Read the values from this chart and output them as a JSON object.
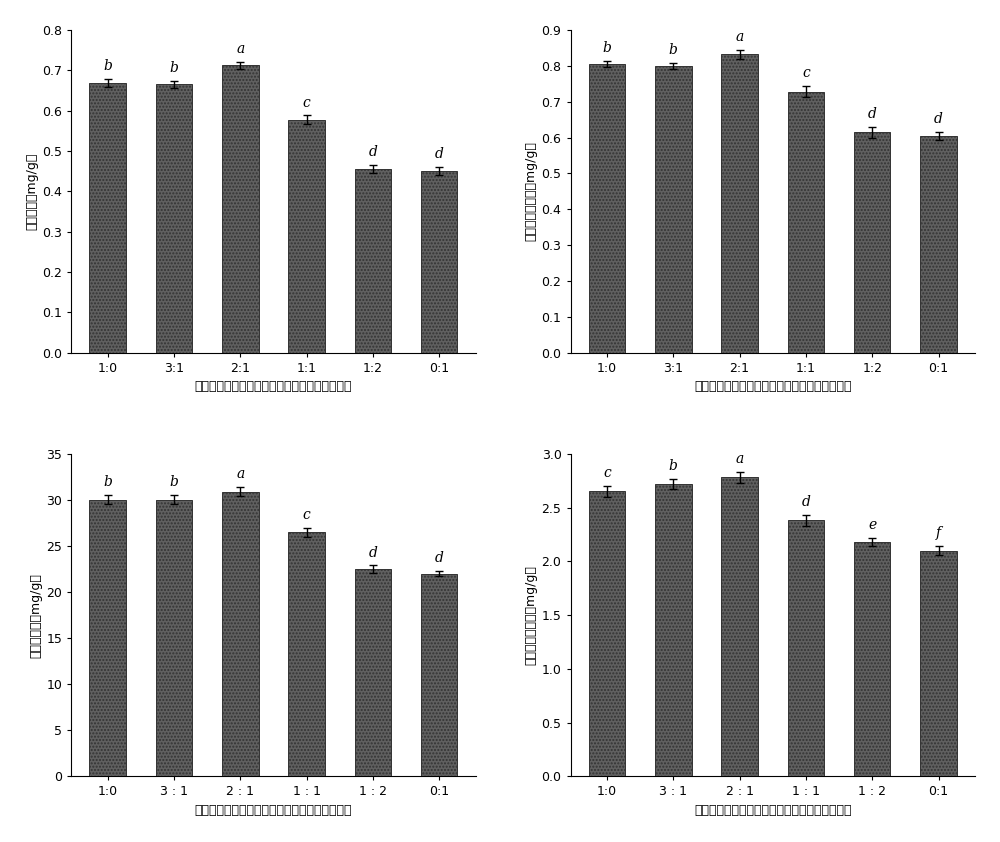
{
  "categories": [
    "1:0",
    "3：1",
    "2：1",
    "1：1",
    "1：2",
    "0:1"
  ],
  "categories_display": [
    "1:0",
    "3：1",
    "2：1",
    "1：1",
    "1：2",
    "0:1"
  ],
  "subplot1": {
    "ylabel": "脲酶活性（mg/g）",
    "xlabel": "添加比例（栋异地克雷伯氏菌：地衣芽孢杆菌）",
    "values": [
      0.668,
      0.665,
      0.712,
      0.578,
      0.455,
      0.45
    ],
    "errors": [
      0.01,
      0.008,
      0.008,
      0.01,
      0.01,
      0.01
    ],
    "labels": [
      "b",
      "b",
      "a",
      "c",
      "d",
      "d"
    ],
    "ylim": [
      0.0,
      0.8
    ],
    "yticks": [
      0.0,
      0.1,
      0.2,
      0.3,
      0.4,
      0.5,
      0.6,
      0.7,
      0.8
    ],
    "ytick_labels": [
      "0.0",
      "0.1",
      "0.2",
      "0.3",
      "0.4",
      "0.5",
      "0.6",
      "0.7",
      "0.8"
    ]
  },
  "subplot2": {
    "ylabel": "碱性磷酸酶活性（mg/g）",
    "xlabel": "添加比例（栋异地克雷伯氏菌：地衣芽孢杆菌）",
    "values": [
      0.805,
      0.8,
      0.832,
      0.728,
      0.615,
      0.604
    ],
    "errors": [
      0.008,
      0.008,
      0.012,
      0.015,
      0.015,
      0.012
    ],
    "labels": [
      "b",
      "b",
      "a",
      "c",
      "d",
      "d"
    ],
    "ylim": [
      0.0,
      0.9
    ],
    "yticks": [
      0.0,
      0.1,
      0.2,
      0.3,
      0.4,
      0.5,
      0.6,
      0.7,
      0.8,
      0.9
    ],
    "ytick_labels": [
      "0.0",
      "0.1",
      "0.2",
      "0.3",
      "0.4",
      "0.5",
      "0.6",
      "0.7",
      "0.8",
      "0.9"
    ]
  },
  "subplot3": {
    "ylabel": "蔗糖酶活性（mg/g）",
    "xlabel": "添加比例（栋异地克雷伯氏菌：地衣芽孢杆菌）",
    "values": [
      30.0,
      30.0,
      30.9,
      26.5,
      22.5,
      22.0
    ],
    "errors": [
      0.5,
      0.5,
      0.5,
      0.5,
      0.4,
      0.3
    ],
    "labels": [
      "b",
      "b",
      "a",
      "c",
      "d",
      "d"
    ],
    "ylim": [
      0,
      35
    ],
    "yticks": [
      0,
      5,
      10,
      15,
      20,
      25,
      30,
      35
    ],
    "ytick_labels": [
      "0",
      "5",
      "10",
      "15",
      "20",
      "25",
      "30",
      "35"
    ]
  },
  "subplot4": {
    "ylabel": "过氧化氢酶活性（mg/g）",
    "xlabel": "添加比例（栋异地克雷伯氏菌：地衣芽孢杆菌）",
    "values": [
      2.65,
      2.72,
      2.78,
      2.38,
      2.18,
      2.1
    ],
    "errors": [
      0.05,
      0.05,
      0.05,
      0.05,
      0.04,
      0.04
    ],
    "labels": [
      "c",
      "b",
      "a",
      "d",
      "e",
      "f"
    ],
    "ylim": [
      0.0,
      3.0
    ],
    "yticks": [
      0.0,
      0.5,
      1.0,
      1.5,
      2.0,
      2.5,
      3.0
    ],
    "ytick_labels": [
      "0.0",
      "0.5",
      "1.0",
      "1.5",
      "2.0",
      "2.5",
      "3.0"
    ]
  },
  "bar_color": "#606060",
  "bar_width": 0.55,
  "label_fontsize": 10,
  "tick_fontsize": 9,
  "axis_label_fontsize": 9,
  "sig_label_fontsize": 10
}
